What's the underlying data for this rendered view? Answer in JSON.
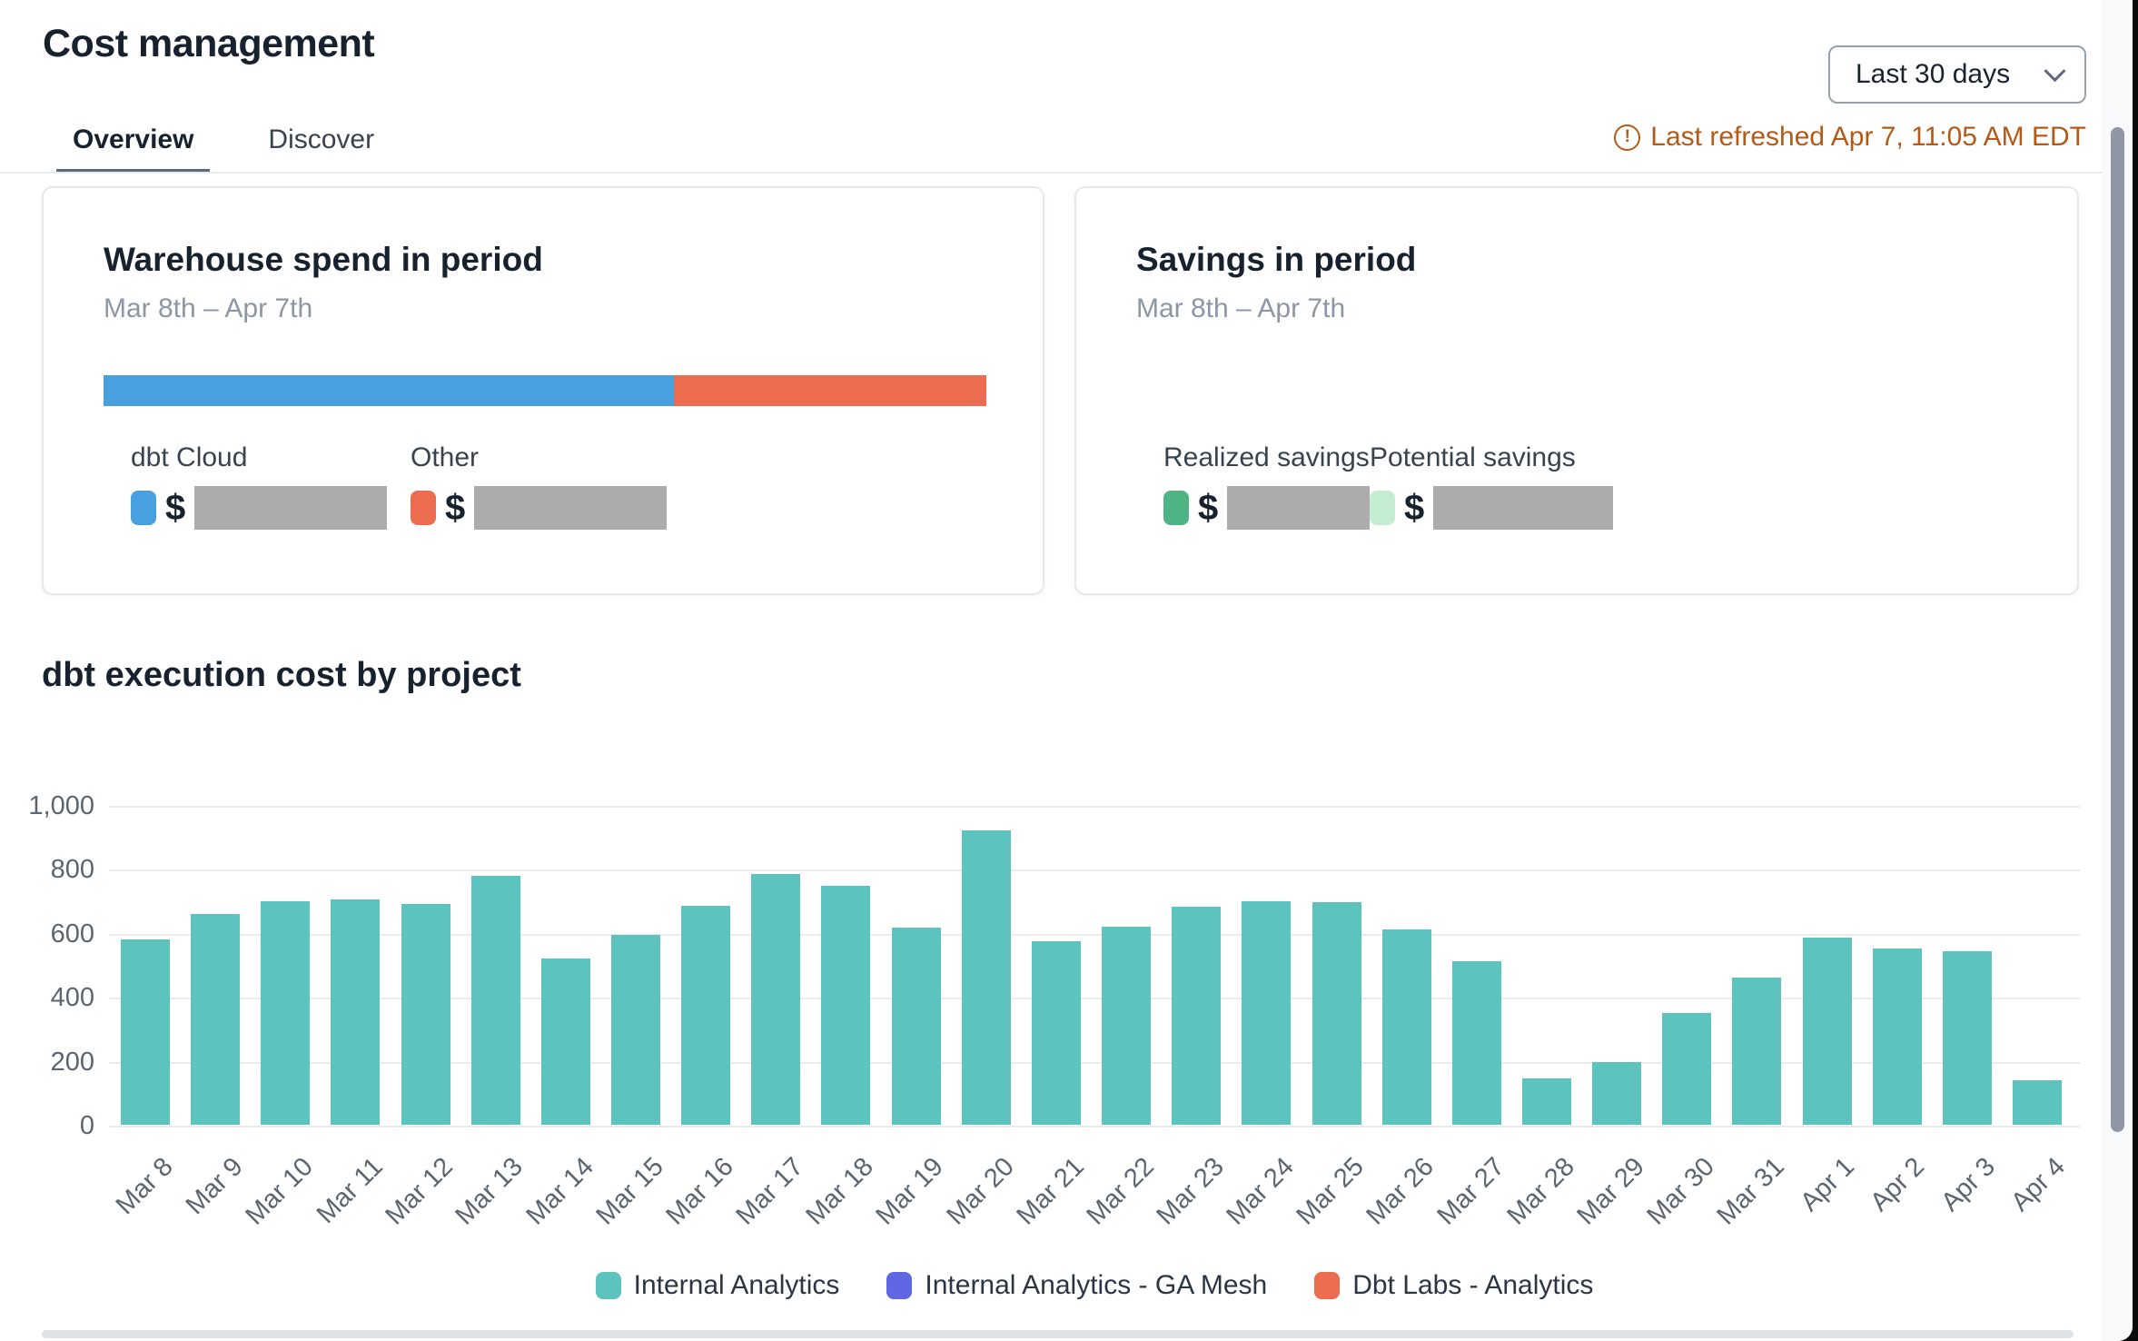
{
  "page": {
    "title": "Cost management"
  },
  "tabs": [
    {
      "label": "Overview",
      "active": true
    },
    {
      "label": "Discover",
      "active": false
    }
  ],
  "period_selector": {
    "label": "Last 30 days",
    "chevron_icon": "chevron-down"
  },
  "refresh": {
    "icon": "warning-circle-icon",
    "text": "Last refreshed Apr 7, 11:05 AM EDT",
    "color": "#b45a18"
  },
  "cards": {
    "warehouse": {
      "title": "Warehouse spend in period",
      "period": "Mar 8th – Apr 7th",
      "currency_symbol": "$",
      "segments": [
        {
          "name": "dbt Cloud",
          "color": "#49a0df",
          "pct": 64.6,
          "value_redacted": true
        },
        {
          "name": "Other",
          "color": "#eb6c4e",
          "pct": 35.4,
          "value_redacted": true
        }
      ]
    },
    "savings": {
      "title": "Savings in period",
      "period": "Mar 8th – Apr 7th",
      "currency_symbol": "$",
      "items": [
        {
          "name": "Realized savings",
          "color": "#4fb483",
          "value_redacted": true
        },
        {
          "name": "Potential savings",
          "color": "#c4edd2",
          "value_redacted": true
        }
      ]
    }
  },
  "chart_section": {
    "title": "dbt execution cost by project"
  },
  "chart_data": {
    "type": "bar",
    "title": "dbt execution cost by project",
    "categories": [
      "Mar 8",
      "Mar 9",
      "Mar 10",
      "Mar 11",
      "Mar 12",
      "Mar 13",
      "Mar 14",
      "Mar 15",
      "Mar 16",
      "Mar 17",
      "Mar 18",
      "Mar 19",
      "Mar 20",
      "Mar 21",
      "Mar 22",
      "Mar 23",
      "Mar 24",
      "Mar 25",
      "Mar 26",
      "Mar 27",
      "Mar 28",
      "Mar 29",
      "Mar 30",
      "Mar 31",
      "Apr 1",
      "Apr 2",
      "Apr 3",
      "Apr 4"
    ],
    "series": [
      {
        "name": "Internal Analytics",
        "color": "#5cc3bf",
        "values": [
          580,
          660,
          700,
          705,
          690,
          778,
          520,
          594,
          684,
          784,
          746,
          617,
          920,
          575,
          620,
          682,
          698,
          695,
          612,
          510,
          144,
          197,
          349,
          461,
          585,
          550,
          543,
          138
        ]
      },
      {
        "name": "Internal Analytics - GA Mesh",
        "color": "#6166e3",
        "values": [
          0,
          0,
          0,
          0,
          0,
          0,
          0,
          0,
          0,
          0,
          0,
          0,
          0,
          0,
          0,
          0,
          0,
          0,
          0,
          0,
          0,
          0,
          0,
          0,
          0,
          0,
          0,
          0
        ]
      },
      {
        "name": "Dbt Labs - Analytics",
        "color": "#eb6c4e",
        "values": [
          0,
          0,
          0,
          0,
          0,
          0,
          0,
          0,
          0,
          0,
          0,
          0,
          0,
          0,
          0,
          0,
          0,
          0,
          0,
          0,
          0,
          0,
          0,
          0,
          0,
          0,
          0,
          0
        ]
      }
    ],
    "xlabel": "",
    "ylabel": "",
    "ylim": [
      0,
      1000
    ],
    "yticks": [
      0,
      200,
      400,
      600,
      800,
      1000
    ],
    "ytick_labels": [
      "0",
      "200",
      "400",
      "600",
      "800",
      "1,000"
    ],
    "grid": true,
    "legend_position": "bottom"
  },
  "colors": {
    "text_dark": "#18222f",
    "text_muted": "#8c96a4",
    "axis_text": "#5b6570",
    "warning": "#b45a18",
    "masked_value": "#acacac",
    "gridline": "#e9ebef"
  }
}
